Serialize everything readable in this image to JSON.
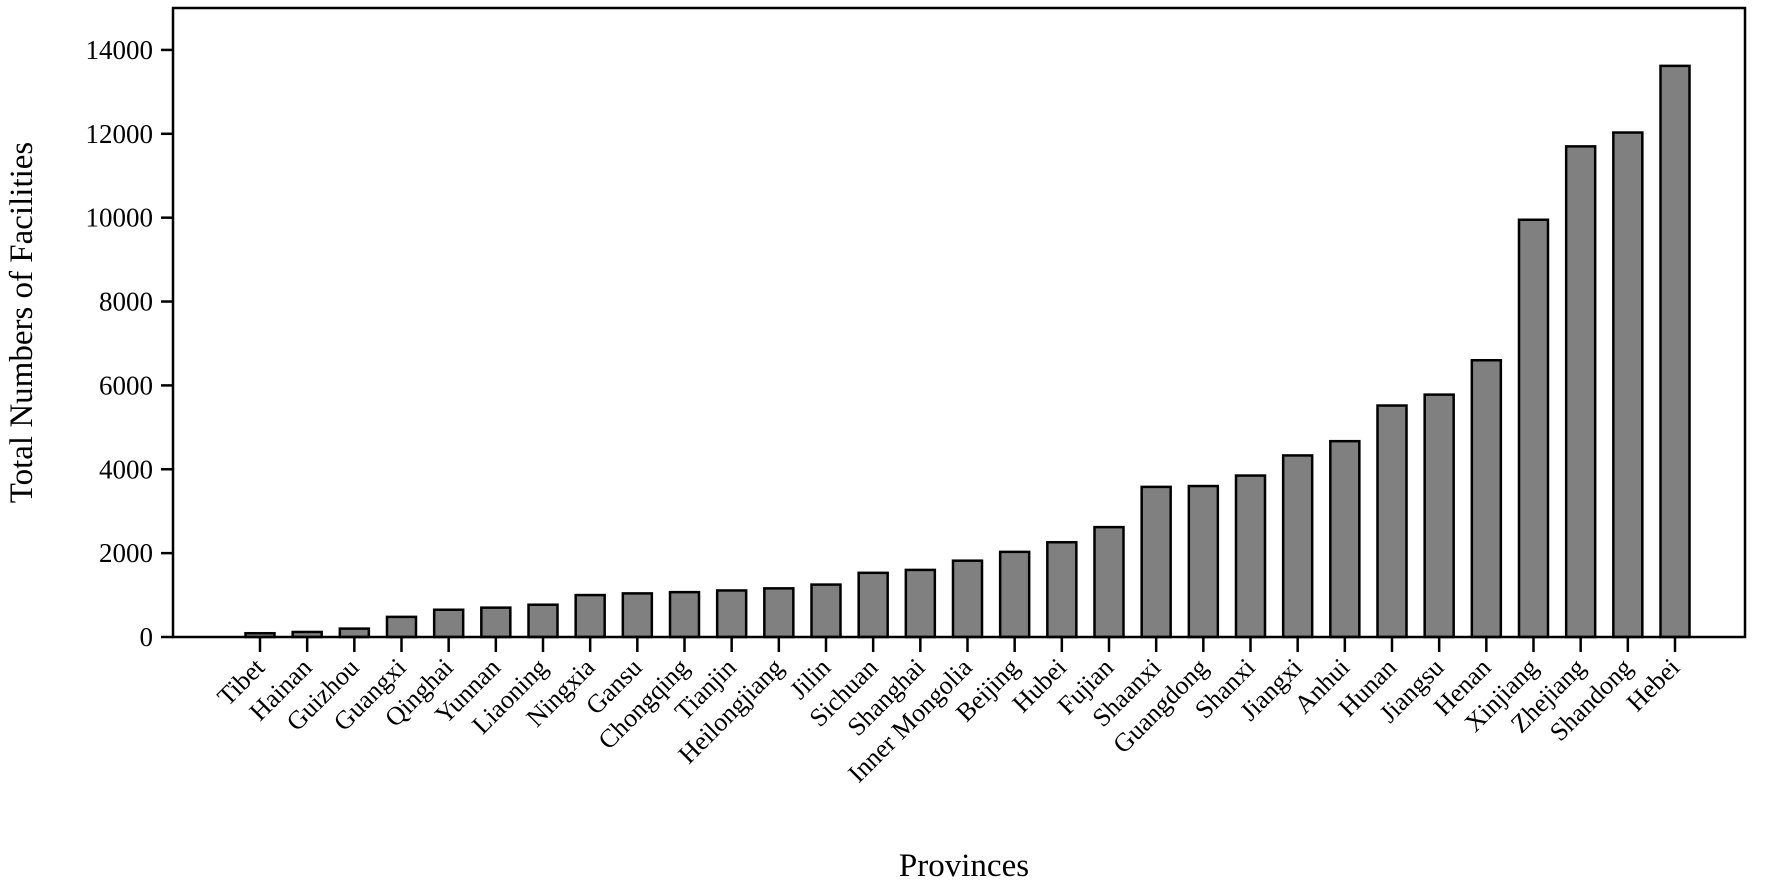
{
  "chart_data": {
    "type": "bar",
    "title": "",
    "xlabel": "Provinces",
    "ylabel": "Total Numbers of Facilities",
    "ylim": [
      0,
      15000
    ],
    "yticks": [
      "0",
      "2000",
      "4000",
      "6000",
      "8000",
      "10000",
      "12000",
      "14000"
    ],
    "grid": false,
    "bar_color": "#808080",
    "categories": [
      "Tibet",
      "Hainan",
      "Guizhou",
      "Guangxi",
      "Qinghai",
      "Yunnan",
      "Liaoning",
      "Ningxia",
      "Gansu",
      "Chongqing",
      "Tianjin",
      "Heilongjiang",
      "Jilin",
      "Sichuan",
      "Shanghai",
      "Inner Mongolia",
      "Beijing",
      "Hubei",
      "Fujian",
      "Shaanxi",
      "Guangdong",
      "Shanxi",
      "Jiangxi",
      "Anhui",
      "Hunan",
      "Jiangsu",
      "Henan",
      "Xinjiang",
      "Zhejiang",
      "Shandong",
      "Hebei"
    ],
    "values": [
      90,
      120,
      200,
      480,
      650,
      700,
      770,
      1000,
      1040,
      1070,
      1110,
      1160,
      1250,
      1530,
      1600,
      1820,
      2030,
      2260,
      2620,
      3580,
      3600,
      3850,
      4330,
      4670,
      5520,
      5780,
      6600,
      9950,
      11700,
      12030,
      13620
    ]
  }
}
